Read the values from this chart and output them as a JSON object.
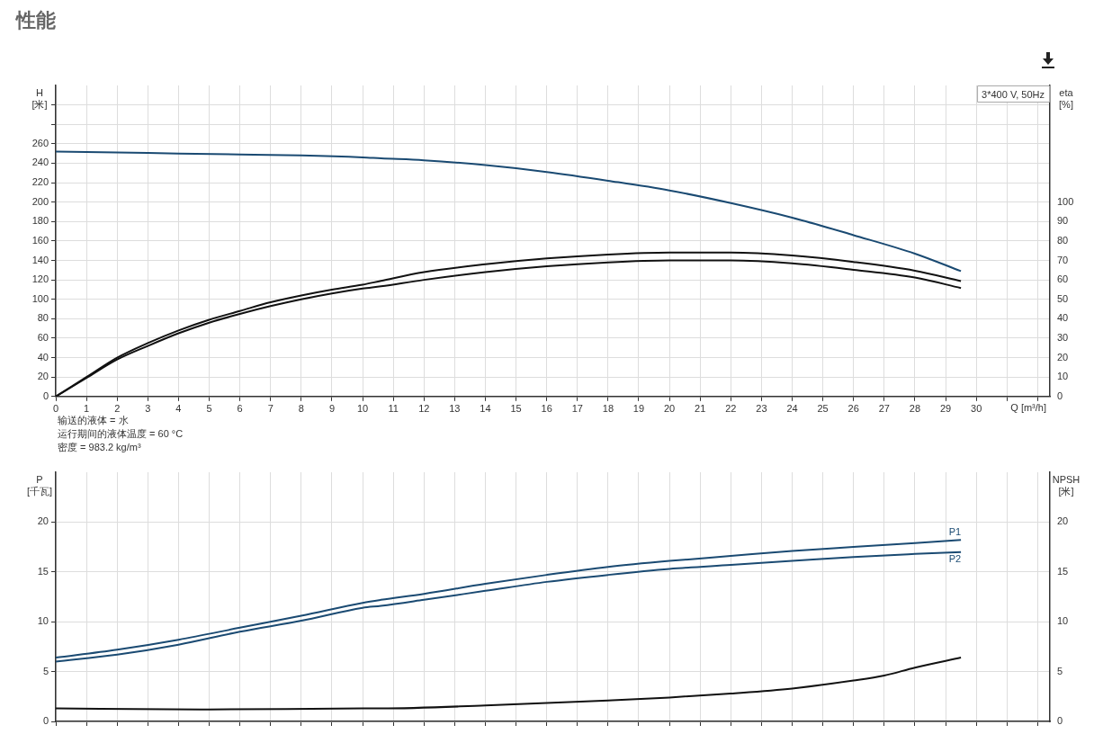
{
  "chart_data": [
    {
      "type": "line",
      "title": "性能",
      "xlabel": "Q [m³/h]",
      "ylabel": "H [米]",
      "y2label": "eta [%]",
      "annotations": [
        "3*400 V, 50Hz",
        "输送的液体 = 水",
        "运行期间的液体温度 = 60 °C",
        "密度 = 983.2 kg/m³"
      ],
      "xlim": [
        0,
        32.4
      ],
      "xticks": [
        0,
        1,
        2,
        3,
        4,
        5,
        6,
        7,
        8,
        9,
        10,
        11,
        12,
        13,
        14,
        15,
        16,
        17,
        18,
        19,
        20,
        21,
        22,
        23,
        24,
        25,
        26,
        27,
        28,
        29,
        30,
        {
          "value": 31,
          "label": null
        },
        {
          "value": 32,
          "label": null
        }
      ],
      "ylim": [
        0,
        320
      ],
      "yticks": [
        0,
        20,
        40,
        60,
        80,
        100,
        120,
        140,
        160,
        180,
        200,
        220,
        240,
        260,
        {
          "value": 280,
          "label": null
        },
        {
          "value": 300,
          "label": null
        }
      ],
      "y2lim": [
        0,
        160
      ],
      "y2ticks": [
        0,
        10,
        20,
        30,
        40,
        50,
        60,
        70,
        80,
        90,
        100
      ],
      "grid": true,
      "marker": "none",
      "series": [
        {
          "color": "#1a4a72",
          "x": [
            0,
            2,
            4,
            6,
            8,
            10,
            10.6,
            12,
            14,
            16,
            18,
            20,
            22,
            24,
            26,
            28,
            29.5
          ],
          "values": [
            252,
            251,
            250,
            249,
            248,
            246,
            245,
            243,
            238,
            231,
            222,
            212,
            199,
            184,
            166,
            147,
            129
          ]
        },
        {
          "color": "#111111",
          "axis": "y2",
          "x": [
            0,
            1,
            2,
            3,
            4,
            5,
            6,
            7,
            8,
            9,
            10,
            10.6,
            12,
            14,
            16,
            18,
            20,
            22,
            24,
            26,
            28,
            29.5
          ],
          "values": [
            0,
            10,
            20,
            27.5,
            34,
            39.5,
            44,
            48.5,
            52,
            55,
            57.5,
            59.5,
            64,
            68,
            71,
            73,
            74,
            74,
            72.5,
            69.2,
            64.7,
            59.4
          ]
        },
        {
          "color": "#111111",
          "axis": "y2",
          "x": [
            0,
            1,
            2,
            3,
            4,
            5,
            6,
            7,
            8,
            9,
            10,
            10.6,
            12,
            14,
            16,
            18,
            20,
            22,
            24,
            26,
            28,
            29.5
          ],
          "values": [
            0,
            9.5,
            19,
            26,
            32.5,
            38,
            42.5,
            46.5,
            50,
            53,
            55.5,
            56.7,
            60,
            64,
            67,
            69,
            70,
            70,
            68.5,
            65.2,
            61.2,
            55.8
          ]
        }
      ]
    },
    {
      "type": "line",
      "ylabel": "P [千瓦]",
      "y2label": "NPSH [米]",
      "tick_labels": "y",
      "marker": "none",
      "grid": true,
      "xlim": [
        0,
        32.4
      ],
      "xticks": [
        0,
        1,
        2,
        3,
        4,
        5,
        6,
        7,
        8,
        9,
        10,
        11,
        12,
        13,
        14,
        15,
        16,
        17,
        18,
        19,
        20,
        21,
        22,
        23,
        24,
        25,
        26,
        27,
        28,
        29,
        30,
        31,
        32
      ],
      "ylim": [
        0,
        25
      ],
      "yticks": [
        0,
        5,
        10,
        15,
        20
      ],
      "y2lim": [
        0,
        25
      ],
      "y2ticks": [
        0,
        5,
        10,
        15,
        20
      ],
      "series": [
        {
          "name": "P1",
          "color": "#1a4a72",
          "x": [
            0,
            2,
            4,
            6,
            8,
            10,
            10.6,
            12,
            14,
            16,
            18,
            20,
            22,
            24,
            26,
            28,
            29.5
          ],
          "values": [
            6.4,
            7.2,
            8.2,
            9.4,
            10.6,
            11.9,
            12.2,
            12.8,
            13.8,
            14.7,
            15.5,
            16.1,
            16.6,
            17.1,
            17.5,
            17.9,
            18.2
          ]
        },
        {
          "name": "P2",
          "color": "#1a4a72",
          "x": [
            0,
            2,
            4,
            6,
            8,
            10,
            10.6,
            12,
            14,
            16,
            18,
            20,
            22,
            24,
            26,
            28,
            29.5
          ],
          "values": [
            6,
            6.7,
            7.7,
            9,
            10.1,
            11.4,
            11.6,
            12.2,
            13.1,
            14,
            14.7,
            15.3,
            15.7,
            16.1,
            16.5,
            16.8,
            17
          ]
        },
        {
          "color": "#111111",
          "axis": "y2",
          "x": [
            0,
            5,
            10,
            10.6,
            14,
            18,
            20,
            22,
            24,
            26,
            27,
            28,
            29.5
          ],
          "values": [
            1.3,
            1.2,
            1.3,
            1.3,
            1.6,
            2.1,
            2.4,
            2.8,
            3.3,
            4.1,
            4.6,
            5.4,
            6.4
          ]
        }
      ]
    }
  ]
}
